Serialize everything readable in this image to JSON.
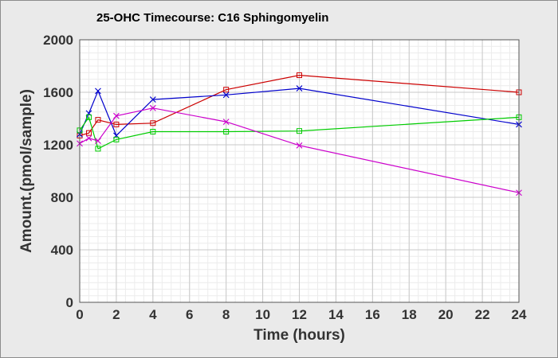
{
  "chart_data": {
    "type": "line",
    "title": "25-OHC Timecourse: C16 Sphingomyelin",
    "xlabel": "Time (hours)",
    "ylabel": "Amount.(pmol/sample)",
    "xlim": [
      0,
      24
    ],
    "ylim": [
      0,
      2000
    ],
    "xticks": [
      0,
      2,
      4,
      6,
      8,
      10,
      12,
      14,
      16,
      18,
      20,
      22,
      24
    ],
    "yticks": [
      0,
      400,
      800,
      1200,
      1600,
      2000
    ],
    "grid": true,
    "legend": "none",
    "series": [
      {
        "color": "#cc0000",
        "marker": "square",
        "points": [
          [
            0,
            1270
          ],
          [
            0.5,
            1290
          ],
          [
            1,
            1390
          ],
          [
            2,
            1355
          ],
          [
            4,
            1365
          ],
          [
            8,
            1620
          ],
          [
            12,
            1730
          ],
          [
            24,
            1600
          ]
        ]
      },
      {
        "color": "#0000cc",
        "marker": "x",
        "points": [
          [
            0,
            1280
          ],
          [
            0.5,
            1440
          ],
          [
            1,
            1610
          ],
          [
            2,
            1270
          ],
          [
            4,
            1545
          ],
          [
            8,
            1580
          ],
          [
            12,
            1630
          ],
          [
            24,
            1355
          ]
        ]
      },
      {
        "color": "#00cc00",
        "marker": "square",
        "points": [
          [
            0,
            1310
          ],
          [
            0.5,
            1410
          ],
          [
            1,
            1170
          ],
          [
            2,
            1240
          ],
          [
            4,
            1300
          ],
          [
            8,
            1300
          ],
          [
            12,
            1305
          ],
          [
            24,
            1410
          ]
        ]
      },
      {
        "color": "#cc00cc",
        "marker": "x",
        "points": [
          [
            0,
            1210
          ],
          [
            0.5,
            1250
          ],
          [
            1,
            1230
          ],
          [
            2,
            1420
          ],
          [
            4,
            1480
          ],
          [
            8,
            1375
          ],
          [
            12,
            1195
          ],
          [
            24,
            835
          ]
        ]
      }
    ]
  }
}
